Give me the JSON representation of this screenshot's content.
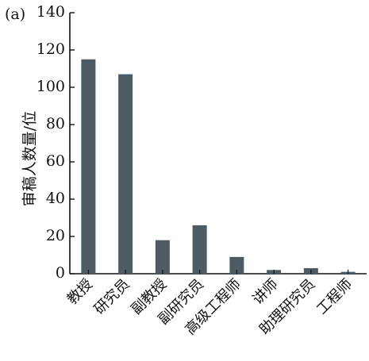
{
  "panel_label": "(a)",
  "chart_data": {
    "type": "bar",
    "categories": [
      "教授",
      "研究员",
      "副教授",
      "副研究员",
      "高级工程师",
      "讲师",
      "助理研究员",
      "工程师"
    ],
    "values": [
      115,
      107,
      18,
      26,
      9,
      2,
      3,
      1
    ],
    "title": "",
    "xlabel": "",
    "ylabel": "审稿人数量/位",
    "ylim": [
      0,
      140
    ],
    "yticks": [
      0,
      20,
      40,
      60,
      80,
      100,
      120,
      140
    ],
    "grid": false,
    "bar_color": "#4d5c64"
  }
}
